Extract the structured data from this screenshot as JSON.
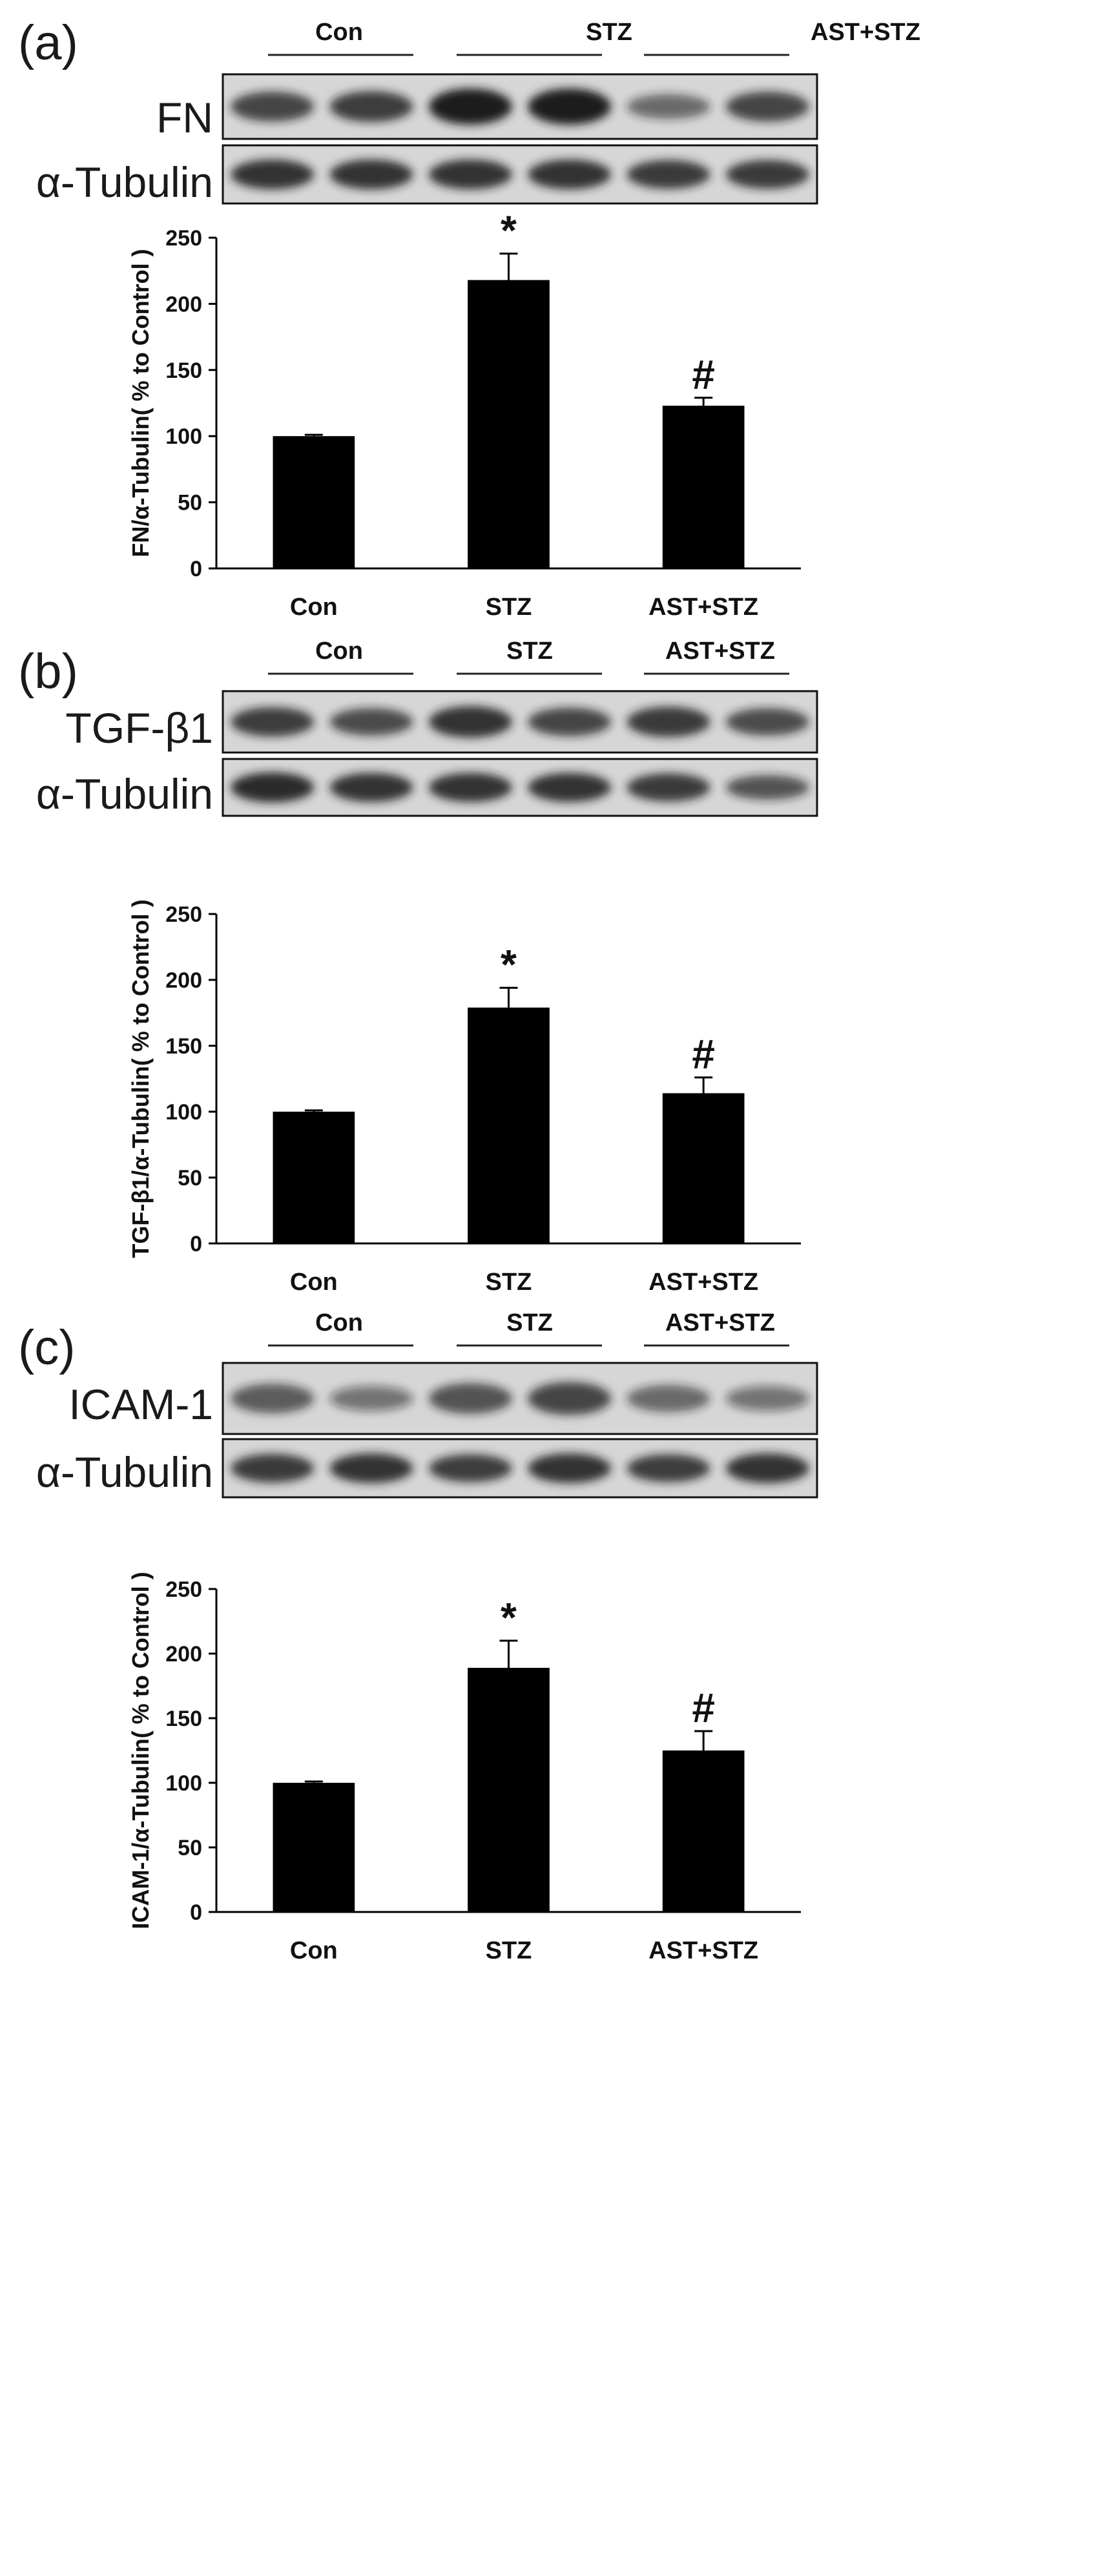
{
  "colors": {
    "bar": "#000000",
    "axis": "#000000",
    "blot_background": "#d6d6d6",
    "blot_band": "#1c1c1c"
  },
  "panels": [
    {
      "letter": "(a)",
      "groups": [
        "Con",
        "STZ",
        "AST+STZ"
      ],
      "blots": [
        {
          "label": "FN",
          "band_intensity": [
            0.7,
            0.75,
            1.0,
            1.0,
            0.45,
            0.7
          ]
        },
        {
          "label": "α-Tubulin",
          "band_intensity": [
            0.85,
            0.85,
            0.85,
            0.85,
            0.8,
            0.8
          ]
        }
      ]
    },
    {
      "letter": "(b)",
      "groups": [
        "Con",
        "STZ",
        "AST+STZ"
      ],
      "blots": [
        {
          "label": "TGF-β1",
          "band_intensity": [
            0.75,
            0.65,
            0.85,
            0.7,
            0.8,
            0.65
          ]
        },
        {
          "label": "α-Tubulin",
          "band_intensity": [
            0.9,
            0.85,
            0.85,
            0.85,
            0.8,
            0.6
          ]
        }
      ]
    },
    {
      "letter": "(c)",
      "groups": [
        "Con",
        "STZ",
        "AST+STZ"
      ],
      "blots": [
        {
          "label": "ICAM-1",
          "band_intensity": [
            0.55,
            0.35,
            0.6,
            0.7,
            0.45,
            0.35
          ]
        },
        {
          "label": "α-Tubulin",
          "band_intensity": [
            0.8,
            0.85,
            0.75,
            0.85,
            0.75,
            0.85
          ]
        }
      ]
    }
  ],
  "chart_data": [
    {
      "type": "bar",
      "categories": [
        "Con",
        "STZ",
        "AST+STZ"
      ],
      "values": [
        100,
        218,
        123
      ],
      "errors": [
        1,
        20,
        6
      ],
      "annotations": [
        "",
        "*",
        "#"
      ],
      "ylabel": "FN/α-Tubulin( % to Control )",
      "ylim": [
        0,
        250
      ],
      "yticks": [
        "0",
        "50",
        "100",
        "150",
        "200",
        "250"
      ],
      "grid": false,
      "legend": "none"
    },
    {
      "type": "bar",
      "categories": [
        "Con",
        "STZ",
        "AST+STZ"
      ],
      "values": [
        100,
        179,
        114
      ],
      "errors": [
        1,
        15,
        12
      ],
      "annotations": [
        "",
        "*",
        "#"
      ],
      "ylabel": "TGF-β1/α-Tubulin( % to Control )",
      "ylim": [
        0,
        250
      ],
      "yticks": [
        "0",
        "50",
        "100",
        "150",
        "200",
        "250"
      ],
      "grid": false,
      "legend": "none"
    },
    {
      "type": "bar",
      "categories": [
        "Con",
        "STZ",
        "AST+STZ"
      ],
      "values": [
        100,
        189,
        125
      ],
      "errors": [
        1,
        21,
        15
      ],
      "annotations": [
        "",
        "*",
        "#"
      ],
      "ylabel": "ICAM-1/α-Tubulin( % to Control )",
      "ylim": [
        0,
        250
      ],
      "yticks": [
        "0",
        "50",
        "100",
        "150",
        "200",
        "250"
      ],
      "grid": false,
      "legend": "none"
    }
  ]
}
